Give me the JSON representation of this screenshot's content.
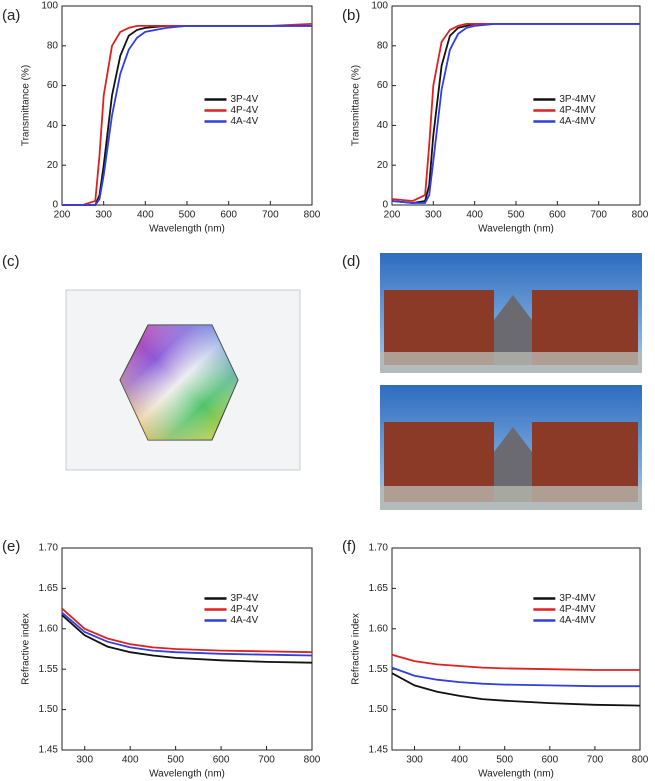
{
  "chart_data": [
    {
      "type": "line",
      "panel": "(a)",
      "xlabel": "Wavelength (nm)",
      "ylabel": "Transmittance (%)",
      "x": [
        200,
        250,
        280,
        290,
        300,
        320,
        340,
        360,
        380,
        400,
        450,
        500,
        600,
        700,
        800
      ],
      "xlim": [
        200,
        800
      ],
      "xticks": [
        200,
        300,
        400,
        500,
        600,
        700,
        800
      ],
      "ylim": [
        0,
        100
      ],
      "yticks": [
        0,
        20,
        40,
        60,
        80,
        100
      ],
      "legend": "center-right",
      "series": [
        {
          "name": "3P-4V",
          "color": "#111111",
          "values": [
            0,
            0,
            0,
            5,
            20,
            55,
            75,
            85,
            88,
            89,
            90,
            90,
            90,
            90,
            90
          ]
        },
        {
          "name": "4P-4V",
          "color": "#e02020",
          "values": [
            0,
            0,
            2,
            25,
            55,
            80,
            87,
            89,
            90,
            90,
            90,
            90,
            90,
            90,
            91
          ]
        },
        {
          "name": "4A-4V",
          "color": "#2f3fe0",
          "values": [
            0,
            0,
            0,
            3,
            15,
            45,
            66,
            78,
            84,
            87,
            89,
            90,
            90,
            90,
            90
          ]
        }
      ]
    },
    {
      "type": "line",
      "panel": "(b)",
      "xlabel": "Wavelength (nm)",
      "ylabel": "Transmittance (%)",
      "x": [
        200,
        250,
        280,
        290,
        300,
        320,
        340,
        360,
        380,
        400,
        450,
        500,
        600,
        700,
        800
      ],
      "xlim": [
        200,
        800
      ],
      "xticks": [
        200,
        300,
        400,
        500,
        600,
        700,
        800
      ],
      "ylim": [
        0,
        100
      ],
      "yticks": [
        0,
        20,
        40,
        60,
        80,
        100
      ],
      "legend": "center-right",
      "series": [
        {
          "name": "3P-4MV",
          "color": "#111111",
          "values": [
            2,
            1,
            2,
            10,
            35,
            70,
            85,
            89,
            90,
            91,
            91,
            91,
            91,
            91,
            91
          ]
        },
        {
          "name": "4P-4MV",
          "color": "#e02020",
          "values": [
            3,
            2,
            5,
            30,
            60,
            82,
            88,
            90,
            91,
            91,
            91,
            91,
            91,
            91,
            91
          ]
        },
        {
          "name": "4A-4MV",
          "color": "#2f3fe0",
          "values": [
            2,
            1,
            1,
            5,
            22,
            58,
            78,
            86,
            89,
            90,
            91,
            91,
            91,
            91,
            91
          ]
        }
      ]
    },
    {
      "type": "line",
      "panel": "(e)",
      "xlabel": "Wavelength (nm)",
      "ylabel": "Refractive index",
      "x": [
        250,
        300,
        350,
        400,
        450,
        500,
        600,
        700,
        800
      ],
      "xlim": [
        250,
        800
      ],
      "xticks": [
        300,
        400,
        500,
        600,
        700,
        800
      ],
      "ylim": [
        1.45,
        1.7
      ],
      "yticks": [
        1.45,
        {
          "value": 1.5,
          "label": "1.50"
        },
        1.55,
        {
          "value": 1.6,
          "label": "1.60"
        },
        1.65,
        {
          "value": 1.7,
          "label": "1.70"
        }
      ],
      "legend": "upper-right",
      "series": [
        {
          "name": "3P-4V",
          "color": "#111111",
          "values": [
            1.617,
            1.592,
            1.578,
            1.571,
            1.567,
            1.564,
            1.561,
            1.559,
            1.558
          ]
        },
        {
          "name": "4P-4V",
          "color": "#e02020",
          "values": [
            1.625,
            1.6,
            1.588,
            1.581,
            1.577,
            1.575,
            1.573,
            1.572,
            1.571
          ]
        },
        {
          "name": "4A-4V",
          "color": "#2f3fe0",
          "values": [
            1.62,
            1.596,
            1.584,
            1.577,
            1.573,
            1.571,
            1.569,
            1.568,
            1.567
          ]
        }
      ]
    },
    {
      "type": "line",
      "panel": "(f)",
      "xlabel": "Wavelength (nm)",
      "ylabel": "Refractive index",
      "x": [
        250,
        300,
        350,
        400,
        450,
        500,
        600,
        700,
        800
      ],
      "xlim": [
        250,
        800
      ],
      "xticks": [
        300,
        400,
        500,
        600,
        700,
        800
      ],
      "ylim": [
        1.45,
        1.7
      ],
      "yticks": [
        1.45,
        {
          "value": 1.5,
          "label": "1.50"
        },
        1.55,
        {
          "value": 1.6,
          "label": "1.60"
        },
        1.65,
        {
          "value": 1.7,
          "label": "1.70"
        }
      ],
      "legend": "upper-right",
      "series": [
        {
          "name": "3P-4MV",
          "color": "#111111",
          "values": [
            1.545,
            1.53,
            1.522,
            1.517,
            1.513,
            1.511,
            1.508,
            1.506,
            1.505
          ]
        },
        {
          "name": "4P-4MV",
          "color": "#e02020",
          "values": [
            1.568,
            1.56,
            1.556,
            1.554,
            1.552,
            1.551,
            1.55,
            1.549,
            1.549
          ]
        },
        {
          "name": "4A-4MV",
          "color": "#2f3fe0",
          "values": [
            1.552,
            1.542,
            1.537,
            1.534,
            1.532,
            1.531,
            1.53,
            1.529,
            1.529
          ]
        }
      ]
    }
  ],
  "images": [
    {
      "panel": "(c)"
    },
    {
      "panel": "(d)"
    }
  ]
}
